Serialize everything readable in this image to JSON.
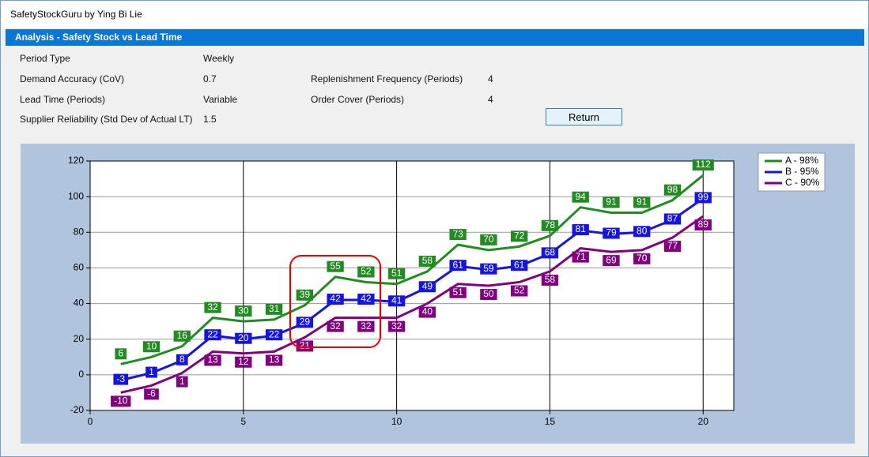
{
  "window": {
    "title": "SafetyStockGuru by Ying Bi Lie"
  },
  "header": {
    "title": "Analysis - Safety Stock vs Lead Time"
  },
  "form": {
    "period_type": {
      "label": "Period Type",
      "value": "Weekly"
    },
    "demand_accuracy": {
      "label": "Demand Accuracy (CoV)",
      "value": "0.7"
    },
    "lead_time": {
      "label": "Lead Time (Periods)",
      "value": "Variable"
    },
    "supplier_reliability": {
      "label": "Supplier Reliability (Std Dev of Actual LT)",
      "value": "1.5"
    },
    "replenishment_frequency": {
      "label": "Replenishment Frequency (Periods)",
      "value": "4"
    },
    "order_cover": {
      "label": "Order Cover (Periods)",
      "value": "4"
    },
    "button": "Return"
  },
  "chart_data": {
    "type": "line",
    "x": [
      1,
      2,
      3,
      4,
      5,
      6,
      7,
      8,
      9,
      10,
      11,
      12,
      13,
      14,
      15,
      16,
      17,
      18,
      19,
      20
    ],
    "series": [
      {
        "name": "A - 98%",
        "color": "#228b22",
        "values": [
          6,
          10,
          16,
          32,
          30,
          31,
          39,
          55,
          52,
          51,
          58,
          73,
          70,
          72,
          78,
          94,
          91,
          91,
          98,
          112
        ]
      },
      {
        "name": "B - 95%",
        "color": "#1414e6",
        "values": [
          -3,
          1,
          8,
          22,
          20,
          22,
          29,
          42,
          42,
          41,
          49,
          61,
          59,
          61,
          68,
          81,
          79,
          80,
          87,
          99
        ]
      },
      {
        "name": "C - 90%",
        "color": "#800080",
        "values": [
          -10,
          -6,
          1,
          13,
          12,
          13,
          21,
          32,
          32,
          32,
          40,
          51,
          50,
          52,
          58,
          71,
          69,
          70,
          77,
          89
        ]
      }
    ],
    "xlim": [
      0,
      21
    ],
    "ylim": [
      -20,
      120
    ],
    "xticks": [
      0,
      5,
      10,
      15,
      20
    ],
    "yticks": [
      -20,
      0,
      20,
      40,
      60,
      80,
      100,
      120
    ],
    "grid": true,
    "legend": "top-right",
    "data_labels": true
  }
}
